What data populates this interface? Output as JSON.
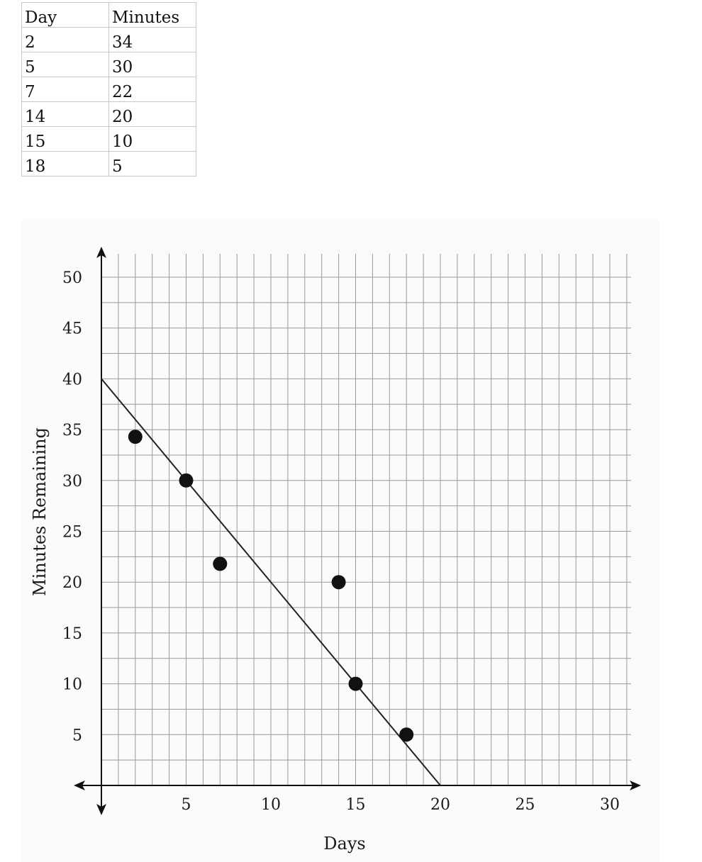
{
  "table": {
    "headers": [
      "Day",
      "Minutes"
    ],
    "rows": [
      [
        "2",
        "34"
      ],
      [
        "5",
        "30"
      ],
      [
        "7",
        "22"
      ],
      [
        "14",
        "20"
      ],
      [
        "15",
        "10"
      ],
      [
        "18",
        "5"
      ]
    ]
  },
  "chart_data": {
    "type": "scatter",
    "xlabel": "Days",
    "ylabel": "Minutes Remaining",
    "xlim": [
      0,
      31
    ],
    "ylim": [
      0,
      52
    ],
    "x_ticks": [
      5,
      10,
      15,
      20,
      25,
      30
    ],
    "y_ticks": [
      5,
      10,
      15,
      20,
      25,
      30,
      35,
      40,
      45,
      50
    ],
    "grid": true,
    "minor_grid_step_x": 1,
    "minor_grid_step_y": 2.5,
    "points": [
      {
        "x": 2,
        "y": 34.3
      },
      {
        "x": 5,
        "y": 30
      },
      {
        "x": 7,
        "y": 21.8
      },
      {
        "x": 14,
        "y": 20
      },
      {
        "x": 15,
        "y": 10
      },
      {
        "x": 18,
        "y": 5
      }
    ],
    "trend_line": {
      "x1": 0,
      "y1": 40,
      "x2": 20,
      "y2": 0
    },
    "colors": {
      "points": "#111111",
      "grid": "#9a9a9a",
      "axes": "#111111",
      "line": "#222222"
    }
  }
}
